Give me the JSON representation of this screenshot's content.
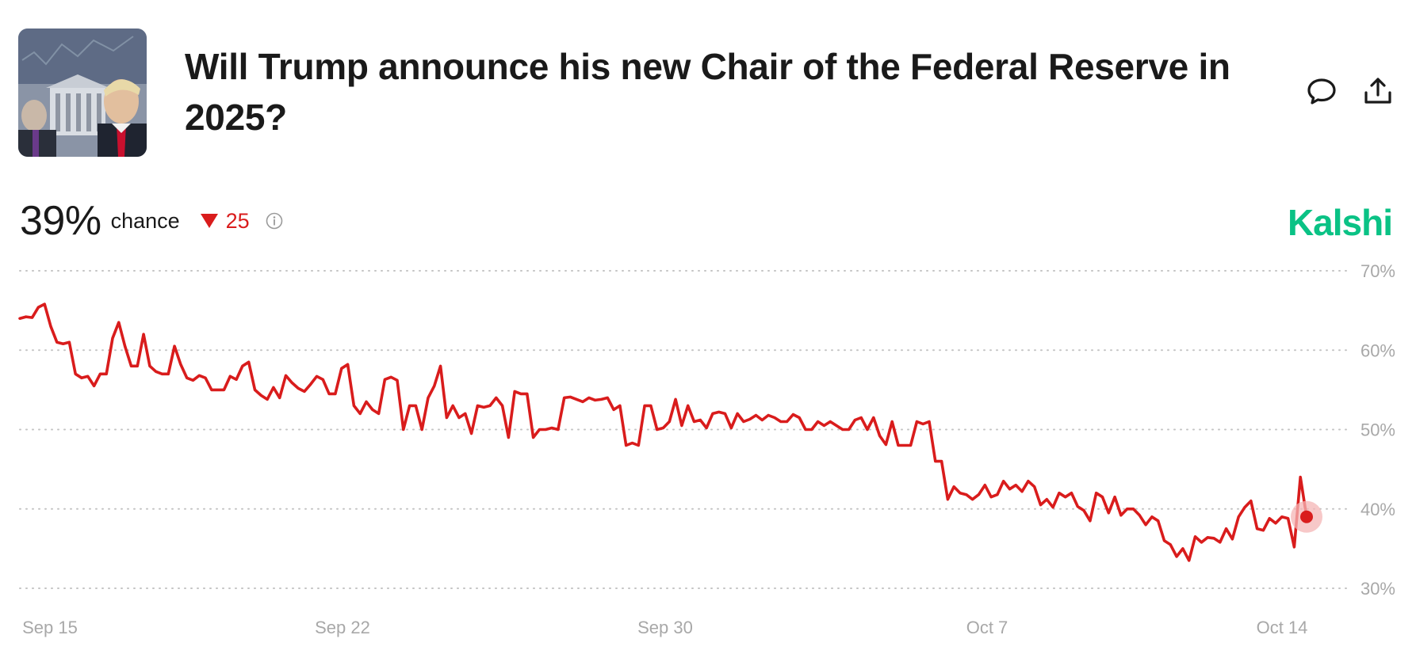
{
  "header": {
    "title": "Will Trump announce his new Chair of the Federal Reserve in 2025?",
    "thumbnail_alt": "Jerome Powell, Donald Trump and the Federal Reserve building"
  },
  "summary": {
    "probability": "39%",
    "chance_label": "chance",
    "change": "25",
    "change_direction": "down"
  },
  "brand": {
    "name": "Kalshi",
    "color": "#0ac285"
  },
  "icons": {
    "comment": "comment-icon",
    "share": "share-icon",
    "info": "info-icon"
  },
  "chart_data": {
    "type": "line",
    "title": "",
    "xlabel": "",
    "ylabel": "",
    "x_tick_labels": [
      "Sep 15",
      "Sep 22",
      "Sep 30",
      "Oct 7",
      "Oct 14"
    ],
    "y_tick_labels": [
      "70%",
      "60%",
      "50%",
      "40%",
      "30%"
    ],
    "ylim": [
      30,
      70
    ],
    "xlim": [
      "Sep 15",
      "Oct 15"
    ],
    "grid": "horizontal dotted",
    "line_color": "#d91c1c",
    "series": [
      {
        "values": [
          [
            "Sep 15",
            64
          ],
          [
            "Sep 15",
            64.2
          ],
          [
            "Sep 15",
            64.1
          ],
          [
            "Sep 16",
            65.4
          ],
          [
            "Sep 16",
            65.8
          ],
          [
            "Sep 16",
            63
          ],
          [
            "Sep 16",
            61
          ],
          [
            "Sep 16",
            60.8
          ],
          [
            "Sep 17",
            61
          ],
          [
            "Sep 17",
            57
          ],
          [
            "Sep 17",
            56.5
          ],
          [
            "Sep 17",
            56.7
          ],
          [
            "Sep 17",
            55.5
          ],
          [
            "Sep 18",
            57
          ],
          [
            "Sep 18",
            57
          ],
          [
            "Sep 18",
            61.5
          ],
          [
            "Sep 18",
            63.5
          ],
          [
            "Sep 18",
            60.5
          ],
          [
            "Sep 18",
            58
          ],
          [
            "Sep 19",
            58
          ],
          [
            "Sep 19",
            62
          ],
          [
            "Sep 19",
            58
          ],
          [
            "Sep 19",
            57.3
          ],
          [
            "Sep 19",
            57
          ],
          [
            "Sep 20",
            57
          ],
          [
            "Sep 20",
            60.5
          ],
          [
            "Sep 20",
            58.2
          ],
          [
            "Sep 20",
            56.5
          ],
          [
            "Sep 21",
            56.2
          ],
          [
            "Sep 21",
            56.8
          ],
          [
            "Sep 21",
            56.5
          ],
          [
            "Sep 21",
            55
          ],
          [
            "Sep 21",
            55
          ],
          [
            "Sep 22",
            55
          ],
          [
            "Sep 22",
            56.7
          ],
          [
            "Sep 22",
            56.3
          ],
          [
            "Sep 22",
            58
          ],
          [
            "Sep 22",
            58.5
          ],
          [
            "Sep 23",
            55
          ],
          [
            "Sep 23",
            54.3
          ],
          [
            "Sep 23",
            53.8
          ],
          [
            "Sep 23",
            55.3
          ],
          [
            "Sep 23",
            54
          ],
          [
            "Sep 24",
            56.8
          ],
          [
            "Sep 24",
            55.9
          ],
          [
            "Sep 24",
            55.2
          ],
          [
            "Sep 24",
            54.8
          ],
          [
            "Sep 24",
            55.7
          ],
          [
            "Sep 25",
            56.7
          ],
          [
            "Sep 25",
            56.3
          ],
          [
            "Sep 25",
            54.5
          ],
          [
            "Sep 25",
            54.5
          ],
          [
            "Sep 25",
            57.7
          ],
          [
            "Sep 25",
            58.2
          ],
          [
            "Sep 26",
            53
          ],
          [
            "Sep 26",
            52
          ],
          [
            "Sep 26",
            53.5
          ],
          [
            "Sep 26",
            52.5
          ],
          [
            "Sep 27",
            52
          ],
          [
            "Sep 27",
            56.3
          ],
          [
            "Sep 27",
            56.6
          ],
          [
            "Sep 27",
            56.2
          ],
          [
            "Sep 28",
            50
          ],
          [
            "Sep 28",
            53
          ],
          [
            "Sep 28",
            53
          ],
          [
            "Sep 28",
            50
          ],
          [
            "Sep 28",
            54
          ],
          [
            "Sep 28",
            55.5
          ],
          [
            "Sep 28",
            58
          ],
          [
            "Sep 29",
            51.5
          ],
          [
            "Sep 29",
            53
          ],
          [
            "Sep 29",
            51.5
          ],
          [
            "Sep 29",
            52
          ],
          [
            "Sep 29",
            49.5
          ],
          [
            "Sep 29",
            53
          ],
          [
            "Sep 29",
            52.8
          ],
          [
            "Sep 29",
            53
          ],
          [
            "Sep 30",
            54
          ],
          [
            "Sep 30",
            53
          ],
          [
            "Sep 30",
            49
          ],
          [
            "Sep 30",
            54.8
          ],
          [
            "Sep 30",
            54.5
          ],
          [
            "Sep 30",
            54.5
          ],
          [
            "Sep 30",
            49
          ],
          [
            "Sep 30",
            50
          ],
          [
            "Oct 1",
            50
          ],
          [
            "Oct 1",
            50.2
          ],
          [
            "Oct 1",
            50
          ],
          [
            "Oct 1",
            54
          ],
          [
            "Oct 1",
            54.1
          ],
          [
            "Oct 1",
            53.8
          ],
          [
            "Oct 2",
            53.5
          ],
          [
            "Oct 2",
            54
          ],
          [
            "Oct 2",
            53.7
          ],
          [
            "Oct 2",
            53.8
          ],
          [
            "Oct 2",
            54
          ],
          [
            "Oct 2",
            52.5
          ],
          [
            "Oct 2",
            53
          ],
          [
            "Oct 2",
            48
          ],
          [
            "Oct 3",
            48.3
          ],
          [
            "Oct 3",
            48
          ],
          [
            "Oct 3",
            53
          ],
          [
            "Oct 3",
            53
          ],
          [
            "Oct 3",
            50
          ],
          [
            "Oct 3",
            50.2
          ],
          [
            "Oct 3",
            51
          ],
          [
            "Oct 3",
            53.8
          ],
          [
            "Oct 4",
            50.5
          ],
          [
            "Oct 4",
            53
          ],
          [
            "Oct 4",
            51
          ],
          [
            "Oct 4",
            51.2
          ],
          [
            "Oct 4",
            50.2
          ],
          [
            "Oct 4",
            52
          ],
          [
            "Oct 4",
            52.2
          ],
          [
            "Oct 4",
            52
          ],
          [
            "Oct 5",
            50.2
          ],
          [
            "Oct 5",
            52
          ],
          [
            "Oct 5",
            51
          ],
          [
            "Oct 5",
            51.3
          ],
          [
            "Oct 5",
            51.8
          ],
          [
            "Oct 5",
            51.2
          ],
          [
            "Oct 5",
            51.8
          ],
          [
            "Oct 5",
            51.5
          ],
          [
            "Oct 6",
            51
          ],
          [
            "Oct 6",
            51
          ],
          [
            "Oct 6",
            51.9
          ],
          [
            "Oct 6",
            51.5
          ],
          [
            "Oct 6",
            50
          ],
          [
            "Oct 6",
            50
          ],
          [
            "Oct 7",
            51
          ],
          [
            "Oct 7",
            50.5
          ],
          [
            "Oct 7",
            51
          ],
          [
            "Oct 7",
            50.5
          ],
          [
            "Oct 7",
            50
          ],
          [
            "Oct 7",
            50
          ],
          [
            "Oct 7",
            51.2
          ],
          [
            "Oct 7",
            51.5
          ],
          [
            "Oct 8",
            50
          ],
          [
            "Oct 8",
            51.5
          ],
          [
            "Oct 8",
            49.2
          ],
          [
            "Oct 8",
            48.1
          ],
          [
            "Oct 8",
            51
          ],
          [
            "Oct 8",
            48
          ],
          [
            "Oct 8",
            48
          ],
          [
            "Oct 8",
            48
          ],
          [
            "Oct 8",
            51
          ],
          [
            "Oct 9",
            50.7
          ],
          [
            "Oct 9",
            51
          ],
          [
            "Oct 9",
            46
          ],
          [
            "Oct 9",
            46
          ],
          [
            "Oct 9",
            41.2
          ],
          [
            "Oct 9",
            42.8
          ],
          [
            "Oct 9",
            42
          ],
          [
            "Oct 9",
            41.8
          ],
          [
            "Oct 9",
            41.2
          ],
          [
            "Oct 10",
            41.8
          ],
          [
            "Oct 10",
            43
          ],
          [
            "Oct 10",
            41.5
          ],
          [
            "Oct 10",
            41.8
          ],
          [
            "Oct 10",
            43.5
          ],
          [
            "Oct 10",
            42.5
          ],
          [
            "Oct 10",
            43
          ],
          [
            "Oct 10",
            42.2
          ],
          [
            "Oct 11",
            43.5
          ],
          [
            "Oct 11",
            42.8
          ],
          [
            "Oct 11",
            40.5
          ],
          [
            "Oct 11",
            41.2
          ],
          [
            "Oct 11",
            40.2
          ],
          [
            "Oct 11",
            42
          ],
          [
            "Oct 11",
            41.5
          ],
          [
            "Oct 11",
            42
          ],
          [
            "Oct 12",
            40.3
          ],
          [
            "Oct 12",
            39.8
          ],
          [
            "Oct 12",
            38.5
          ],
          [
            "Oct 12",
            42
          ],
          [
            "Oct 12",
            41.5
          ],
          [
            "Oct 12",
            39.5
          ],
          [
            "Oct 12",
            41.5
          ],
          [
            "Oct 12",
            39.2
          ],
          [
            "Oct 12",
            40
          ],
          [
            "Oct 13",
            40
          ],
          [
            "Oct 13",
            39.2
          ],
          [
            "Oct 13",
            38
          ],
          [
            "Oct 13",
            39
          ],
          [
            "Oct 13",
            38.5
          ],
          [
            "Oct 13",
            36
          ],
          [
            "Oct 13",
            35.5
          ],
          [
            "Oct 13",
            34
          ],
          [
            "Oct 13",
            35
          ],
          [
            "Oct 13",
            33.5
          ],
          [
            "Oct 13",
            36.5
          ],
          [
            "Oct 14",
            35.8
          ],
          [
            "Oct 14",
            36.4
          ],
          [
            "Oct 14",
            36.3
          ],
          [
            "Oct 14",
            35.8
          ],
          [
            "Oct 14",
            37.5
          ],
          [
            "Oct 14",
            36.2
          ],
          [
            "Oct 14",
            39
          ],
          [
            "Oct 14",
            40.2
          ],
          [
            "Oct 14",
            41
          ],
          [
            "Oct 14",
            37.5
          ],
          [
            "Oct 14",
            37.3
          ],
          [
            "Oct 14",
            38.8
          ],
          [
            "Oct 14",
            38.2
          ],
          [
            "Oct 14",
            39
          ],
          [
            "Oct 14",
            38.8
          ],
          [
            "Oct 14",
            35.2
          ],
          [
            "Oct 14",
            44
          ],
          [
            "Oct 14",
            39
          ]
        ]
      }
    ],
    "current_value": 39
  }
}
